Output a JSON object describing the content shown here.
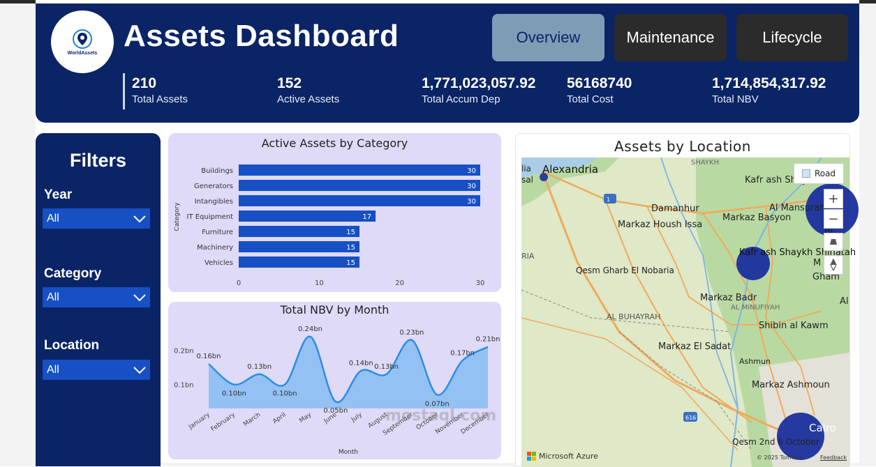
{
  "header": {
    "logo_text": "WorldAssets",
    "title": "Assets Dashboard",
    "nav": [
      "Overview",
      "Maintenance",
      "Lifecycle"
    ],
    "active_nav": "Overview"
  },
  "kpis": [
    {
      "value": "210",
      "label": "Total Assets"
    },
    {
      "value": "152",
      "label": "Active Assets"
    },
    {
      "value": "1,771,023,057.92",
      "label": "Total Accum Dep"
    },
    {
      "value": "56168740",
      "label": "Total Cost"
    },
    {
      "value": "1,714,854,317.92",
      "label": "Total NBV"
    }
  ],
  "filters": {
    "title": "Filters",
    "items": [
      {
        "label": "Year",
        "value": "All"
      },
      {
        "label": "Category",
        "value": "All"
      },
      {
        "label": "Location",
        "value": "All"
      }
    ]
  },
  "chart_data": [
    {
      "type": "bar",
      "orientation": "horizontal",
      "title": "Active Assets by Category",
      "ylabel": "Category",
      "xlabel": "",
      "categories": [
        "Buildings",
        "Generators",
        "Intangibles",
        "IT Equipment",
        "Furniture",
        "Machinery",
        "Vehicles"
      ],
      "values": [
        30,
        30,
        30,
        17,
        15,
        15,
        15
      ],
      "xlim": [
        0,
        30
      ],
      "xticks": [
        "0",
        "10",
        "20",
        "30"
      ],
      "color": "#1650c4"
    },
    {
      "type": "area",
      "title": "Total NBV by Month",
      "xlabel": "Month",
      "ylabel": "",
      "categories": [
        "January",
        "February",
        "March",
        "April",
        "May",
        "June",
        "July",
        "August",
        "September",
        "October",
        "November",
        "December"
      ],
      "values": [
        0.16,
        0.1,
        0.13,
        0.1,
        0.24,
        0.05,
        0.14,
        0.13,
        0.23,
        0.07,
        0.17,
        0.21
      ],
      "labels": [
        "0.16bn",
        "0.10bn",
        "0.13bn",
        "0.10bn",
        "0.24bn",
        "0.05bn",
        "0.14bn",
        "0.13bn",
        "0.23bn",
        "0.07bn",
        "0.17bn",
        "0.21bn"
      ],
      "yticks": [
        {
          "v": 0.1,
          "label": "0.1bn"
        },
        {
          "v": 0.2,
          "label": "0.2bn"
        }
      ],
      "ylim": [
        0.03,
        0.25
      ],
      "color": "#2a8ee6"
    }
  ],
  "map": {
    "title": "Assets by Location",
    "road_label": "Road",
    "zoom_in": "+",
    "zoom_out": "−",
    "provider": "Microsoft Azure",
    "copyright": "© 2025 TomTom",
    "feedback": "Feedback",
    "places": [
      "Alexandria",
      "Kafr ash Shaykh",
      "Al Mansurah",
      "Damanhur",
      "Markaz Basyon",
      "Markaz Housh Issa",
      "Kafr ash Shaykh Shihatah",
      "Qesm Gharb El Nobaria",
      "Markaz Badr",
      "AL BUHAYRAH",
      "AL MINUFIYAH",
      "Shibin al Kawm",
      "Markaz El Sadat",
      "Ashmun",
      "Markaz Ashmoun",
      "Cairo",
      "Qesm 2nd 6 October",
      "SHAYKH",
      "RIA",
      "Al",
      "M",
      "Gham",
      "Al",
      "lia",
      "sal"
    ],
    "road_shields": [
      "1",
      "616"
    ]
  },
  "watermark": "mostaql.com"
}
